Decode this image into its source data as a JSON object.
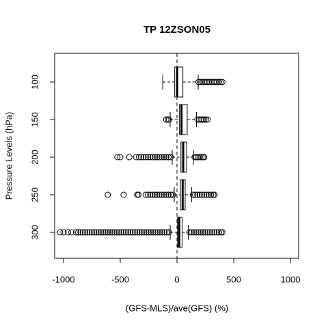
{
  "chart_data": {
    "type": "boxplot",
    "orientation": "horizontal",
    "title": "TP 12ZSON05",
    "xlabel": "(GFS-MLS)/ave(GFS) (%)",
    "ylabel": "Pressure Levels (hPa)",
    "categories": [
      "100",
      "150",
      "200",
      "250",
      "300"
    ],
    "xlim": [
      -1078,
      1072
    ],
    "xticks": [
      -1000,
      -500,
      0,
      500,
      1000
    ],
    "refline": 0,
    "color": "#000000",
    "boxes": [
      {
        "whislo": -126,
        "q1": -20,
        "med": 2,
        "q3": 52,
        "whishi": 187,
        "fliers": [
          190,
          205,
          220,
          235,
          250,
          265,
          280,
          295,
          310,
          325,
          340,
          355,
          370,
          385,
          400
        ]
      },
      {
        "whislo": -60,
        "q1": 22,
        "med": 40,
        "q3": 90,
        "whishi": 172,
        "fliers": [
          -70,
          -80,
          -95,
          180,
          195,
          210,
          225,
          240,
          255,
          270
        ]
      },
      {
        "whislo": -42,
        "q1": 35,
        "med": 55,
        "q3": 85,
        "whishi": 145,
        "fliers": [
          -55,
          -75,
          -95,
          -115,
          -135,
          -155,
          -175,
          -195,
          -215,
          -235,
          -255,
          -275,
          -295,
          -315,
          -335,
          -360,
          -420,
          -500,
          -525,
          155,
          170,
          185,
          200,
          215,
          230,
          240
        ]
      },
      {
        "whislo": -24,
        "q1": 30,
        "med": 50,
        "q3": 72,
        "whishi": 130,
        "fliers": [
          -35,
          -55,
          -75,
          -95,
          -115,
          -135,
          -155,
          -175,
          -195,
          -215,
          -235,
          -255,
          -275,
          -340,
          -350,
          -470,
          -610,
          140,
          160,
          180,
          200,
          220,
          240,
          260,
          280,
          300,
          320,
          330
        ]
      },
      {
        "whislo": -60,
        "q1": 5,
        "med": 20,
        "q3": 45,
        "whishi": 100,
        "fliers": [
          -70,
          -90,
          -110,
          -130,
          -150,
          -170,
          -190,
          -210,
          -230,
          -250,
          -270,
          -290,
          -310,
          -330,
          -350,
          -370,
          -390,
          -410,
          -430,
          -450,
          -470,
          -490,
          -510,
          -530,
          -550,
          -570,
          -590,
          -610,
          -630,
          -650,
          -670,
          -690,
          -710,
          -730,
          -750,
          -770,
          -790,
          -810,
          -830,
          -850,
          -870,
          -890,
          -930,
          -960,
          -1000,
          -1030,
          110,
          130,
          150,
          170,
          190,
          210,
          230,
          250,
          270,
          290,
          310,
          330,
          350,
          370,
          390,
          400
        ]
      }
    ]
  }
}
